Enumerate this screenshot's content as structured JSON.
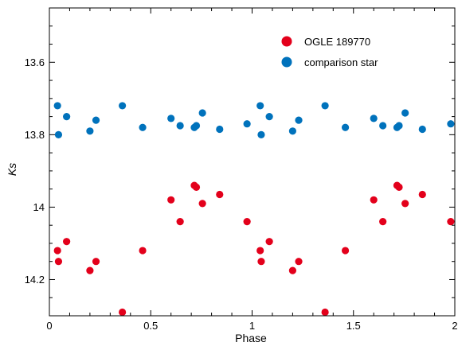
{
  "chart_data": {
    "type": "scatter",
    "title": "",
    "xlabel": "Phase",
    "ylabel": "Ks",
    "xlim": [
      0,
      2
    ],
    "ylim": [
      14.3,
      13.45
    ],
    "y_inverted": true,
    "grid": false,
    "legend_position": "top-right",
    "x_ticks": [
      0,
      0.5,
      1,
      1.5,
      2
    ],
    "x_tick_labels": [
      "0",
      "0.5",
      "1",
      "1.5",
      "2"
    ],
    "y_ticks": [
      13.6,
      13.8,
      14,
      14.2
    ],
    "y_tick_labels": [
      "13.6",
      "13.8",
      "14",
      "14.2"
    ],
    "series": [
      {
        "name": "OGLE 189770",
        "color": "#e3001b",
        "points": [
          [
            0.04,
            14.12
          ],
          [
            0.045,
            14.15
          ],
          [
            0.085,
            14.095
          ],
          [
            0.2,
            14.175
          ],
          [
            0.23,
            14.15
          ],
          [
            0.36,
            14.29
          ],
          [
            0.46,
            14.12
          ],
          [
            0.6,
            13.98
          ],
          [
            0.645,
            14.04
          ],
          [
            0.715,
            13.94
          ],
          [
            0.725,
            13.945
          ],
          [
            0.755,
            13.99
          ],
          [
            0.84,
            13.965
          ],
          [
            0.975,
            14.04
          ],
          [
            1.04,
            14.12
          ],
          [
            1.045,
            14.15
          ],
          [
            1.085,
            14.095
          ],
          [
            1.2,
            14.175
          ],
          [
            1.23,
            14.15
          ],
          [
            1.36,
            14.29
          ],
          [
            1.46,
            14.12
          ],
          [
            1.6,
            13.98
          ],
          [
            1.645,
            14.04
          ],
          [
            1.715,
            13.94
          ],
          [
            1.725,
            13.945
          ],
          [
            1.755,
            13.99
          ],
          [
            1.84,
            13.965
          ],
          [
            1.98,
            14.04
          ]
        ]
      },
      {
        "name": "comparison star",
        "color": "#0072bc",
        "points": [
          [
            0.04,
            13.72
          ],
          [
            0.045,
            13.8
          ],
          [
            0.085,
            13.75
          ],
          [
            0.2,
            13.79
          ],
          [
            0.23,
            13.76
          ],
          [
            0.36,
            13.72
          ],
          [
            0.46,
            13.78
          ],
          [
            0.6,
            13.755
          ],
          [
            0.645,
            13.775
          ],
          [
            0.715,
            13.78
          ],
          [
            0.725,
            13.775
          ],
          [
            0.755,
            13.74
          ],
          [
            0.84,
            13.785
          ],
          [
            0.975,
            13.77
          ],
          [
            1.04,
            13.72
          ],
          [
            1.045,
            13.8
          ],
          [
            1.085,
            13.75
          ],
          [
            1.2,
            13.79
          ],
          [
            1.23,
            13.76
          ],
          [
            1.36,
            13.72
          ],
          [
            1.46,
            13.78
          ],
          [
            1.6,
            13.755
          ],
          [
            1.645,
            13.775
          ],
          [
            1.715,
            13.78
          ],
          [
            1.725,
            13.775
          ],
          [
            1.755,
            13.74
          ],
          [
            1.84,
            13.785
          ],
          [
            1.98,
            13.77
          ]
        ]
      }
    ]
  }
}
